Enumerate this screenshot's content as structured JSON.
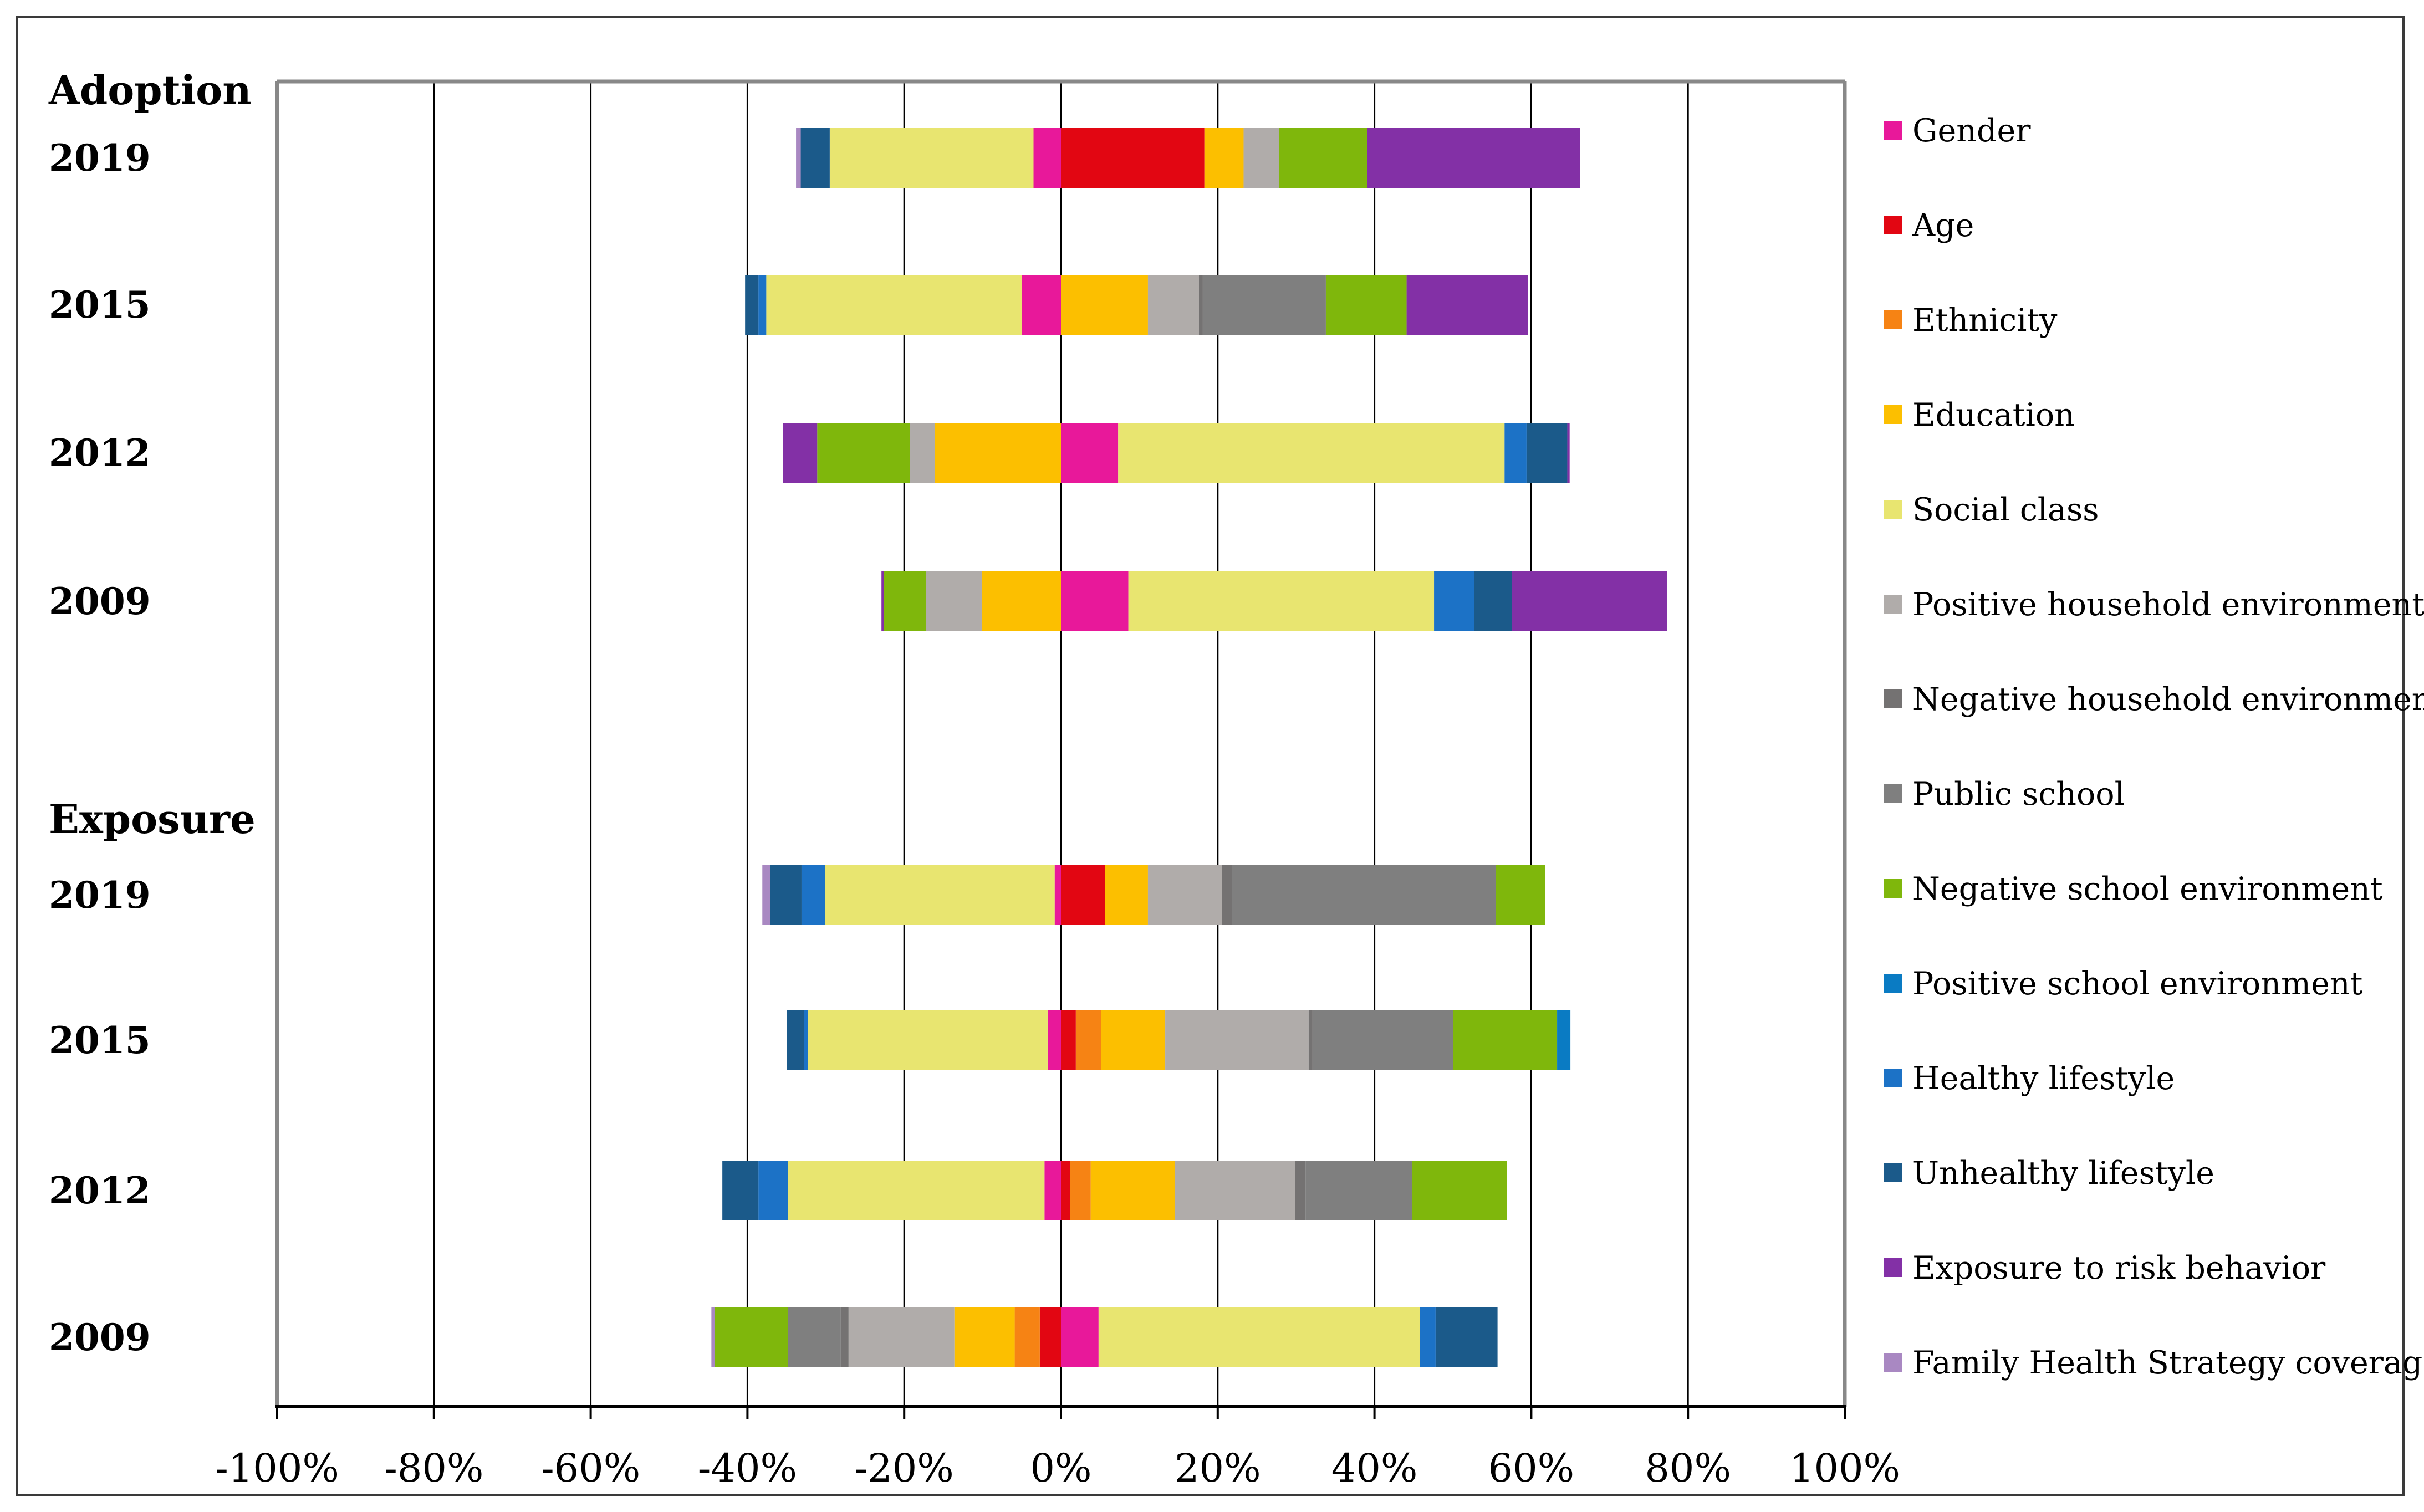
{
  "chart_data": {
    "type": "bar",
    "orientation": "horizontal-stacked-diverging",
    "title": "",
    "xlabel": "",
    "ylabel": "",
    "xlim": [
      -100,
      100
    ],
    "x_ticks": [
      "-100%",
      "-80%",
      "-60%",
      "-40%",
      "-20%",
      "0%",
      "20%",
      "40%",
      "60%",
      "80%",
      "100%"
    ],
    "grid": "vertical",
    "legend_position": "right",
    "series": [
      {
        "name": "Gender",
        "color": "#e8189a"
      },
      {
        "name": "Age",
        "color": "#e20612"
      },
      {
        "name": "Ethnicity",
        "color": "#f68314"
      },
      {
        "name": "Education",
        "color": "#fcbf00"
      },
      {
        "name": "Social class",
        "color": "#e8e570"
      },
      {
        "name": "Positive household environment",
        "color": "#b0acaa"
      },
      {
        "name": "Negative household environment",
        "color": "#747272"
      },
      {
        "name": "Public school",
        "color": "#7f7f7f"
      },
      {
        "name": "Negative school environment",
        "color": "#7fb70c"
      },
      {
        "name": "Positive school environment",
        "color": "#0a7bc3"
      },
      {
        "name": "Healthy lifestyle",
        "color": "#1c72c6"
      },
      {
        "name": "Unhealthy lifestyle",
        "color": "#1b5a8a"
      },
      {
        "name": "Exposure to risk behavior",
        "color": "#8330a6"
      },
      {
        "name": "Family Health Strategy coverage",
        "color": "#a988c2"
      }
    ],
    "groups": [
      {
        "title": "Adoption",
        "rows": [
          {
            "year": "2019",
            "segments": [
              [
                "Gender",
                -3.5,
                0
              ],
              [
                "Social class",
                -29.5,
                -3.5
              ],
              [
                "Unhealthy lifestyle",
                -33.2,
                -29.5
              ],
              [
                "Family Health Strategy coverage",
                -33.8,
                -33.2
              ],
              [
                "Age",
                0,
                18.3
              ],
              [
                "Education",
                18.3,
                23.3
              ],
              [
                "Positive household environment",
                23.3,
                27.8
              ],
              [
                "Negative school environment",
                27.8,
                39.1
              ],
              [
                "Exposure to risk behavior",
                39.1,
                66.2
              ]
            ]
          },
          {
            "year": "2015",
            "segments": [
              [
                "Gender",
                -5,
                0
              ],
              [
                "Social class",
                -37.6,
                -5
              ],
              [
                "Healthy lifestyle",
                -38.6,
                -37.6
              ],
              [
                "Unhealthy lifestyle",
                -40.3,
                -38.6
              ],
              [
                "Education",
                0,
                11.1
              ],
              [
                "Positive household environment",
                11.1,
                17.6
              ],
              [
                "Negative household environment",
                17.6,
                18.1
              ],
              [
                "Public school",
                18.1,
                33.8
              ],
              [
                "Negative school environment",
                33.8,
                44.1
              ],
              [
                "Exposure to risk behavior",
                44.1,
                59.6
              ]
            ]
          },
          {
            "year": "2012",
            "segments": [
              [
                "Education",
                -16.1,
                0
              ],
              [
                "Positive household environment",
                -19.3,
                -16.1
              ],
              [
                "Negative school environment",
                -31.1,
                -19.3
              ],
              [
                "Exposure to risk behavior",
                -35.5,
                -31.1
              ],
              [
                "Gender",
                0,
                7.3
              ],
              [
                "Social class",
                7.3,
                56.6
              ],
              [
                "Healthy lifestyle",
                56.6,
                59.4
              ],
              [
                "Unhealthy lifestyle",
                59.4,
                64.6
              ],
              [
                "Exposure to risk behavior",
                64.6,
                64.9
              ]
            ]
          },
          {
            "year": "2009",
            "segments": [
              [
                "Education",
                -10.1,
                0
              ],
              [
                "Positive household environment",
                -17.2,
                -10.1
              ],
              [
                "Negative school environment",
                -22.6,
                -17.2
              ],
              [
                "Exposure to risk behavior",
                -22.9,
                -22.6
              ],
              [
                "Gender",
                0,
                8.6
              ],
              [
                "Social class",
                8.6,
                47.6
              ],
              [
                "Healthy lifestyle",
                47.6,
                52.7
              ],
              [
                "Unhealthy lifestyle",
                52.7,
                57.5
              ],
              [
                "Exposure to risk behavior",
                57.5,
                77.3
              ]
            ]
          }
        ]
      },
      {
        "title": "Exposure",
        "rows": [
          {
            "year": "2019",
            "segments": [
              [
                "Gender",
                -0.8,
                0
              ],
              [
                "Social class",
                -30.1,
                -0.8
              ],
              [
                "Healthy lifestyle",
                -33.1,
                -30.1
              ],
              [
                "Unhealthy lifestyle",
                -37.1,
                -33.1
              ],
              [
                "Family Health Strategy coverage",
                -38.1,
                -37.1
              ],
              [
                "Age",
                0,
                5.6
              ],
              [
                "Education",
                5.6,
                11.1
              ],
              [
                "Positive household environment",
                11.1,
                20.5
              ],
              [
                "Negative household environment",
                20.5,
                21.8
              ],
              [
                "Public school",
                21.8,
                55.5
              ],
              [
                "Negative school environment",
                55.5,
                61.8
              ]
            ]
          },
          {
            "year": "2015",
            "segments": [
              [
                "Gender",
                -1.7,
                0
              ],
              [
                "Social class",
                -32.3,
                -1.7
              ],
              [
                "Healthy lifestyle",
                -32.8,
                -32.3
              ],
              [
                "Unhealthy lifestyle",
                -35.0,
                -32.8
              ],
              [
                "Age",
                0,
                1.9
              ],
              [
                "Ethnicity",
                1.9,
                5.1
              ],
              [
                "Education",
                5.1,
                13.3
              ],
              [
                "Positive household environment",
                13.3,
                31.6
              ],
              [
                "Negative household environment",
                31.6,
                32.1
              ],
              [
                "Public school",
                32.1,
                50.0
              ],
              [
                "Negative school environment",
                50.0,
                63.3
              ],
              [
                "Positive school environment",
                63.3,
                65.0
              ]
            ]
          },
          {
            "year": "2012",
            "segments": [
              [
                "Gender",
                -2.1,
                0
              ],
              [
                "Social class",
                -34.8,
                -2.1
              ],
              [
                "Healthy lifestyle",
                -38.6,
                -34.8
              ],
              [
                "Unhealthy lifestyle",
                -43.2,
                -38.6
              ],
              [
                "Age",
                0,
                1.2
              ],
              [
                "Ethnicity",
                1.2,
                3.8
              ],
              [
                "Education",
                3.8,
                14.5
              ],
              [
                "Positive household environment",
                14.5,
                29.9
              ],
              [
                "Negative household environment",
                29.9,
                31.2
              ],
              [
                "Public school",
                31.2,
                44.8
              ],
              [
                "Negative school environment",
                44.8,
                56.9
              ]
            ]
          },
          {
            "year": "2009",
            "segments": [
              [
                "Age",
                -2.7,
                0
              ],
              [
                "Ethnicity",
                -5.9,
                -2.7
              ],
              [
                "Education",
                -13.6,
                -5.9
              ],
              [
                "Positive household environment",
                -27.1,
                -13.6
              ],
              [
                "Negative household environment",
                -28.1,
                -27.1
              ],
              [
                "Public school",
                -34.8,
                -28.1
              ],
              [
                "Negative school environment",
                -44.2,
                -34.8
              ],
              [
                "Family Health Strategy coverage",
                -44.6,
                -44.2
              ],
              [
                "Gender",
                0,
                4.8
              ],
              [
                "Social class",
                4.8,
                45.8
              ],
              [
                "Healthy lifestyle",
                45.8,
                47.8
              ],
              [
                "Unhealthy lifestyle",
                47.8,
                55.7
              ]
            ]
          }
        ]
      }
    ]
  }
}
